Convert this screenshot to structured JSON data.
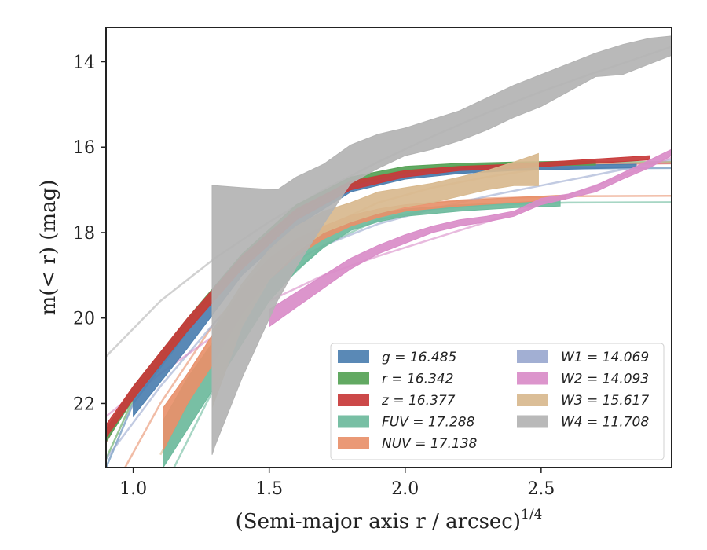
{
  "chart_data": {
    "type": "line",
    "xlabel": "(Semi-major axis r / arcsec)",
    "xlabel_exp": "1/4",
    "ylabel": "m(< r) (mag)",
    "xlim": [
      0.9,
      2.98
    ],
    "ylim": [
      23.5,
      13.2
    ],
    "y_inverted": true,
    "xticks": [
      1.0,
      1.5,
      2.0,
      2.5
    ],
    "xtick_labels": [
      "1.0",
      "1.5",
      "2.0",
      "2.5"
    ],
    "yticks": [
      14,
      16,
      18,
      20,
      22
    ],
    "ytick_labels": [
      "14",
      "16",
      "18",
      "20",
      "22"
    ],
    "grid": false,
    "legend_position": "lower-right",
    "series": [
      {
        "name": "g = 16.485",
        "color": "#4c7fb0",
        "band": [
          [
            1.0,
            21.8,
            22.3
          ],
          [
            1.2,
            20.3,
            20.7
          ],
          [
            1.4,
            18.7,
            19.0
          ],
          [
            1.6,
            17.6,
            17.85
          ],
          [
            1.8,
            16.85,
            17.05
          ],
          [
            2.0,
            16.6,
            16.75
          ],
          [
            2.2,
            16.5,
            16.62
          ],
          [
            2.4,
            16.45,
            16.55
          ],
          [
            2.6,
            16.42,
            16.52
          ],
          [
            2.85,
            16.4,
            16.48
          ]
        ],
        "model": [
          [
            0.9,
            23.5
          ],
          [
            1.0,
            22.0
          ],
          [
            1.2,
            20.3
          ],
          [
            1.4,
            18.8
          ],
          [
            1.6,
            17.7
          ],
          [
            1.8,
            17.0
          ],
          [
            2.0,
            16.7
          ],
          [
            2.2,
            16.58
          ],
          [
            2.4,
            16.53
          ],
          [
            2.6,
            16.5
          ],
          [
            2.98,
            16.49
          ]
        ]
      },
      {
        "name": "r = 16.342",
        "color": "#55a255",
        "band": [
          [
            0.9,
            22.6,
            22.9
          ],
          [
            1.0,
            21.6,
            21.9
          ],
          [
            1.2,
            20.0,
            20.3
          ],
          [
            1.4,
            18.5,
            18.8
          ],
          [
            1.6,
            17.35,
            17.6
          ],
          [
            1.8,
            16.7,
            16.9
          ],
          [
            2.0,
            16.45,
            16.6
          ],
          [
            2.2,
            16.38,
            16.48
          ],
          [
            2.4,
            16.35,
            16.44
          ],
          [
            2.7,
            16.32,
            16.42
          ]
        ],
        "model": [
          [
            0.9,
            23.3
          ],
          [
            1.0,
            21.9
          ],
          [
            1.2,
            20.1
          ],
          [
            1.4,
            18.6
          ],
          [
            1.6,
            17.5
          ],
          [
            1.8,
            16.8
          ],
          [
            2.0,
            16.55
          ],
          [
            2.2,
            16.44
          ],
          [
            2.4,
            16.39
          ],
          [
            2.6,
            16.36
          ],
          [
            2.98,
            16.35
          ]
        ]
      },
      {
        "name": "z = 16.377",
        "color": "#c83a3a",
        "band": [
          [
            0.9,
            22.5,
            22.8
          ],
          [
            1.0,
            21.6,
            21.9
          ],
          [
            1.2,
            20.0,
            20.3
          ],
          [
            1.4,
            18.55,
            18.85
          ],
          [
            1.6,
            17.45,
            17.7
          ],
          [
            1.8,
            16.8,
            17.0
          ],
          [
            2.0,
            16.55,
            16.7
          ],
          [
            2.2,
            16.45,
            16.55
          ],
          [
            2.4,
            16.4,
            16.5
          ],
          [
            2.9,
            16.2,
            16.3
          ]
        ],
        "model": [
          [
            0.9,
            22.9
          ],
          [
            1.0,
            21.8
          ],
          [
            1.2,
            20.1
          ],
          [
            1.4,
            18.7
          ],
          [
            1.6,
            17.6
          ],
          [
            1.8,
            16.9
          ],
          [
            2.0,
            16.6
          ],
          [
            2.2,
            16.48
          ],
          [
            2.4,
            16.42
          ],
          [
            2.6,
            16.4
          ],
          [
            2.98,
            16.38
          ]
        ]
      },
      {
        "name": "FUV = 17.288",
        "color": "#6cba9c",
        "band": [
          [
            1.11,
            22.4,
            23.5
          ],
          [
            1.2,
            21.4,
            22.6
          ],
          [
            1.3,
            20.5,
            21.6
          ],
          [
            1.4,
            19.5,
            20.6
          ],
          [
            1.5,
            18.8,
            19.6
          ],
          [
            1.6,
            18.3,
            18.9
          ],
          [
            1.7,
            17.95,
            18.35
          ],
          [
            1.8,
            17.7,
            17.95
          ],
          [
            1.9,
            17.55,
            17.75
          ],
          [
            2.0,
            17.45,
            17.62
          ],
          [
            2.2,
            17.35,
            17.5
          ],
          [
            2.4,
            17.3,
            17.42
          ],
          [
            2.57,
            17.25,
            17.38
          ]
        ],
        "model": [
          [
            1.15,
            23.5
          ],
          [
            1.3,
            21.6
          ],
          [
            1.5,
            19.5
          ],
          [
            1.7,
            18.3
          ],
          [
            1.9,
            17.7
          ],
          [
            2.1,
            17.45
          ],
          [
            2.3,
            17.35
          ],
          [
            2.6,
            17.3
          ],
          [
            2.98,
            17.29
          ]
        ]
      },
      {
        "name": "NUV = 17.138",
        "color": "#e8906a",
        "band": [
          [
            1.11,
            22.1,
            23.1
          ],
          [
            1.2,
            21.3,
            22.0
          ],
          [
            1.3,
            20.3,
            21.0
          ],
          [
            1.4,
            19.3,
            19.9
          ],
          [
            1.5,
            18.6,
            19.1
          ],
          [
            1.6,
            18.15,
            18.55
          ],
          [
            1.7,
            17.85,
            18.15
          ],
          [
            1.8,
            17.6,
            17.85
          ],
          [
            1.9,
            17.45,
            17.65
          ],
          [
            2.0,
            17.35,
            17.5
          ],
          [
            2.2,
            17.25,
            17.38
          ],
          [
            2.4,
            17.18,
            17.3
          ],
          [
            2.59,
            17.12,
            17.22
          ]
        ],
        "model": [
          [
            0.97,
            23.5
          ],
          [
            1.1,
            22.0
          ],
          [
            1.3,
            20.1
          ],
          [
            1.5,
            18.7
          ],
          [
            1.7,
            17.9
          ],
          [
            1.9,
            17.5
          ],
          [
            2.1,
            17.3
          ],
          [
            2.3,
            17.2
          ],
          [
            2.6,
            17.15
          ],
          [
            2.98,
            17.14
          ]
        ]
      },
      {
        "name": "W1 = 14.069",
        "color": "#9aa8cf",
        "model": [
          [
            0.9,
            23.3
          ],
          [
            1.1,
            21.6
          ],
          [
            1.3,
            20.1
          ],
          [
            1.5,
            19.0
          ],
          [
            1.7,
            18.3
          ],
          [
            1.9,
            17.8
          ],
          [
            2.1,
            17.45
          ],
          [
            2.3,
            17.15
          ],
          [
            2.5,
            16.9
          ],
          [
            2.7,
            16.65
          ],
          [
            2.98,
            16.3
          ]
        ]
      },
      {
        "name": "W2 = 14.093",
        "color": "#d98cc8",
        "band": [
          [
            1.5,
            19.8,
            20.2
          ],
          [
            1.6,
            19.4,
            19.75
          ],
          [
            1.7,
            19.0,
            19.3
          ],
          [
            1.8,
            18.6,
            18.85
          ],
          [
            1.9,
            18.3,
            18.5
          ],
          [
            2.0,
            18.05,
            18.25
          ],
          [
            2.1,
            17.85,
            18.0
          ],
          [
            2.2,
            17.7,
            17.85
          ],
          [
            2.3,
            17.62,
            17.75
          ],
          [
            2.4,
            17.5,
            17.62
          ],
          [
            2.5,
            17.2,
            17.35
          ],
          [
            2.6,
            17.1,
            17.2
          ],
          [
            2.7,
            16.9,
            17.05
          ],
          [
            2.8,
            16.6,
            16.75
          ],
          [
            2.9,
            16.3,
            16.48
          ],
          [
            2.98,
            16.05,
            16.2
          ]
        ],
        "model": [
          [
            0.9,
            22.3
          ],
          [
            1.1,
            21.3
          ],
          [
            1.3,
            20.4
          ],
          [
            1.5,
            19.6
          ],
          [
            1.7,
            19.0
          ],
          [
            1.9,
            18.55
          ],
          [
            2.1,
            18.15
          ],
          [
            2.3,
            17.75
          ],
          [
            2.5,
            17.35
          ],
          [
            2.7,
            16.9
          ],
          [
            2.98,
            16.25
          ]
        ]
      },
      {
        "name": "W3 = 15.617",
        "color": "#d8b98e",
        "band": [
          [
            1.29,
            20.3,
            22.1
          ],
          [
            1.4,
            19.2,
            20.2
          ],
          [
            1.5,
            18.4,
            19.1
          ],
          [
            1.6,
            17.85,
            18.45
          ],
          [
            1.7,
            17.5,
            18.0
          ],
          [
            1.8,
            17.3,
            17.75
          ],
          [
            1.9,
            17.05,
            17.55
          ],
          [
            2.0,
            16.95,
            17.4
          ],
          [
            2.1,
            16.85,
            17.3
          ],
          [
            2.2,
            16.7,
            17.15
          ],
          [
            2.3,
            16.55,
            17.0
          ],
          [
            2.4,
            16.35,
            16.9
          ],
          [
            2.49,
            16.15,
            16.9
          ]
        ],
        "model": [
          [
            1.1,
            23.2
          ],
          [
            1.3,
            20.8
          ],
          [
            1.5,
            19.0
          ],
          [
            1.7,
            17.9
          ],
          [
            1.9,
            17.3
          ],
          [
            2.1,
            16.95
          ],
          [
            2.3,
            16.7
          ],
          [
            2.5,
            16.5
          ],
          [
            2.7,
            16.4
          ],
          [
            2.98,
            16.35
          ]
        ]
      },
      {
        "name": "W4 = 11.708",
        "color": "#b3b3b3",
        "band": [
          [
            1.29,
            16.9,
            23.2
          ],
          [
            1.3,
            16.9,
            23.0
          ],
          [
            1.4,
            16.95,
            21.4
          ],
          [
            1.53,
            17.0,
            19.6
          ],
          [
            1.6,
            16.7,
            18.8
          ],
          [
            1.7,
            16.4,
            17.8
          ],
          [
            1.8,
            15.95,
            16.85
          ],
          [
            1.9,
            15.7,
            16.5
          ],
          [
            2.0,
            15.55,
            16.2
          ],
          [
            2.1,
            15.35,
            16.05
          ],
          [
            2.2,
            15.15,
            15.85
          ],
          [
            2.3,
            14.85,
            15.6
          ],
          [
            2.4,
            14.55,
            15.3
          ],
          [
            2.5,
            14.3,
            15.05
          ],
          [
            2.6,
            14.05,
            14.7
          ],
          [
            2.7,
            13.8,
            14.35
          ],
          [
            2.8,
            13.6,
            14.3
          ],
          [
            2.9,
            13.45,
            14.05
          ],
          [
            2.98,
            13.4,
            13.85
          ]
        ],
        "model": [
          [
            0.9,
            20.9
          ],
          [
            1.1,
            19.6
          ],
          [
            1.3,
            18.6
          ],
          [
            1.5,
            17.75
          ],
          [
            1.7,
            17.0
          ],
          [
            1.9,
            16.35
          ],
          [
            2.1,
            15.75
          ],
          [
            2.3,
            15.2
          ],
          [
            2.5,
            14.7
          ],
          [
            2.7,
            14.25
          ],
          [
            2.98,
            13.65
          ]
        ]
      }
    ],
    "legend": [
      {
        "name": "g = 16.485",
        "color": "#4c7fb0"
      },
      {
        "name": "r = 16.342",
        "color": "#55a255"
      },
      {
        "name": "z = 16.377",
        "color": "#c83a3a"
      },
      {
        "name": "FUV = 17.288",
        "color": "#6cba9c"
      },
      {
        "name": "NUV = 17.138",
        "color": "#e8906a"
      },
      {
        "name": "W1 = 14.069",
        "color": "#9aa8cf"
      },
      {
        "name": "W2 = 14.093",
        "color": "#d98cc8"
      },
      {
        "name": "W3 = 15.617",
        "color": "#d8b98e"
      },
      {
        "name": "W4 = 11.708",
        "color": "#b3b3b3"
      }
    ]
  }
}
